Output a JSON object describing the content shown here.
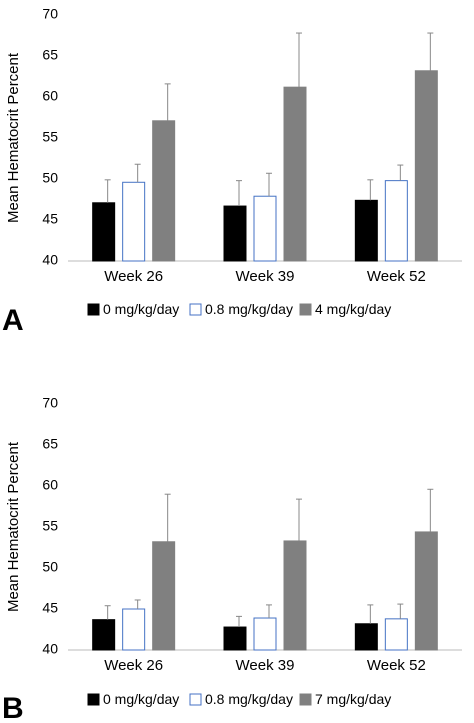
{
  "chart_data": [
    {
      "type": "bar",
      "label": "A",
      "ylabel": "Mean Hematocrit Percent",
      "categories": [
        "Week 26",
        "Week 39",
        "Week 52"
      ],
      "series": [
        {
          "name": "0 mg/kg/day",
          "color": "#000000",
          "edgecolor": "#000000",
          "values": [
            47.1,
            46.7,
            47.4
          ],
          "errors": [
            2.8,
            3.1,
            2.5
          ]
        },
        {
          "name": "0.8 mg/kg/day",
          "color": "#ffffff",
          "edgecolor": "#4472c4",
          "values": [
            49.6,
            47.9,
            49.8
          ],
          "errors": [
            2.2,
            2.8,
            1.9
          ]
        },
        {
          "name": "4 mg/kg/day",
          "color": "#808080",
          "edgecolor": "#808080",
          "values": [
            57.1,
            61.2,
            63.2
          ],
          "errors": [
            4.5,
            6.6,
            4.6
          ]
        }
      ],
      "ylim": [
        40,
        70
      ],
      "yticks": [
        40,
        45,
        50,
        55,
        60,
        65,
        70
      ],
      "grid": false,
      "legend": "bottom"
    },
    {
      "type": "bar",
      "label": "B",
      "ylabel": "Mean Hematocrit Percent",
      "categories": [
        "Week 26",
        "Week 39",
        "Week 52"
      ],
      "series": [
        {
          "name": "0 mg/kg/day",
          "color": "#000000",
          "edgecolor": "#000000",
          "values": [
            43.7,
            42.8,
            43.2
          ],
          "errors": [
            1.7,
            1.3,
            2.3
          ]
        },
        {
          "name": "0.8 mg/kg/day",
          "color": "#ffffff",
          "edgecolor": "#4472c4",
          "values": [
            45.0,
            43.9,
            43.8
          ],
          "errors": [
            1.1,
            1.6,
            1.8
          ]
        },
        {
          "name": "7 mg/kg/day",
          "color": "#808080",
          "edgecolor": "#808080",
          "values": [
            53.2,
            53.3,
            54.4
          ],
          "errors": [
            5.8,
            5.1,
            5.2
          ]
        }
      ],
      "ylim": [
        40,
        70
      ],
      "yticks": [
        40,
        45,
        50,
        55,
        60,
        65,
        70
      ],
      "grid": false,
      "legend": "bottom"
    }
  ]
}
